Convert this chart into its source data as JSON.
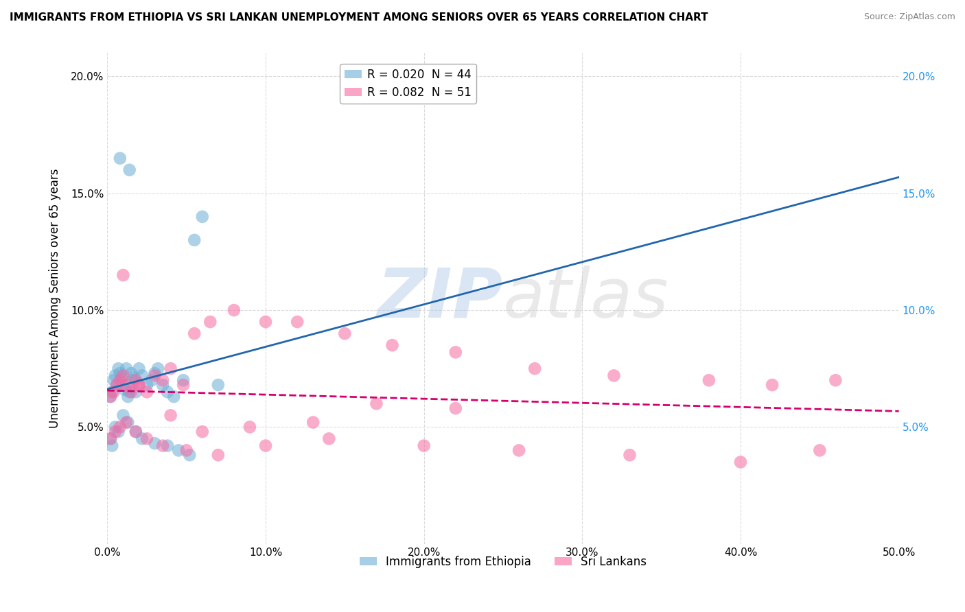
{
  "title": "IMMIGRANTS FROM ETHIOPIA VS SRI LANKAN UNEMPLOYMENT AMONG SENIORS OVER 65 YEARS CORRELATION CHART",
  "source": "Source: ZipAtlas.com",
  "ylabel": "Unemployment Among Seniors over 65 years",
  "xlim": [
    0.0,
    0.5
  ],
  "ylim": [
    0.0,
    0.21
  ],
  "xticks": [
    0.0,
    0.1,
    0.2,
    0.3,
    0.4,
    0.5
  ],
  "xticklabels": [
    "0.0%",
    "10.0%",
    "20.0%",
    "30.0%",
    "40.0%",
    "50.0%"
  ],
  "yticks": [
    0.0,
    0.05,
    0.1,
    0.15,
    0.2
  ],
  "yticklabels_left": [
    "",
    "5.0%",
    "10.0%",
    "15.0%",
    "20.0%"
  ],
  "yticklabels_right": [
    "",
    "5.0%",
    "10.0%",
    "15.0%",
    "20.0%"
  ],
  "legend1_label": "Immigrants from Ethiopia",
  "legend2_label": "Sri Lankans",
  "r1": 0.02,
  "n1": 44,
  "r2": 0.082,
  "n2": 51,
  "color1": "#6baed6",
  "color2": "#f768a1",
  "line_color1": "#2166ac",
  "line_color2": "#d4006e",
  "watermark_zip": "ZIP",
  "watermark_atlas": "atlas",
  "ethiopia_x": [
    0.002,
    0.003,
    0.004,
    0.005,
    0.006,
    0.007,
    0.008,
    0.009,
    0.01,
    0.011,
    0.012,
    0.013,
    0.014,
    0.015,
    0.016,
    0.017,
    0.018,
    0.02,
    0.022,
    0.025,
    0.028,
    0.03,
    0.032,
    0.035,
    0.038,
    0.042,
    0.048,
    0.055,
    0.06,
    0.07,
    0.002,
    0.003,
    0.005,
    0.007,
    0.01,
    0.013,
    0.018,
    0.022,
    0.03,
    0.038,
    0.045,
    0.052,
    0.008,
    0.014
  ],
  "ethiopia_y": [
    0.063,
    0.065,
    0.07,
    0.072,
    0.068,
    0.075,
    0.073,
    0.071,
    0.068,
    0.066,
    0.075,
    0.063,
    0.065,
    0.073,
    0.07,
    0.071,
    0.065,
    0.075,
    0.072,
    0.068,
    0.07,
    0.073,
    0.075,
    0.068,
    0.065,
    0.063,
    0.07,
    0.13,
    0.14,
    0.068,
    0.045,
    0.042,
    0.05,
    0.048,
    0.055,
    0.052,
    0.048,
    0.045,
    0.043,
    0.042,
    0.04,
    0.038,
    0.165,
    0.16
  ],
  "srilanka_x": [
    0.002,
    0.004,
    0.006,
    0.008,
    0.01,
    0.012,
    0.015,
    0.018,
    0.02,
    0.025,
    0.03,
    0.035,
    0.04,
    0.048,
    0.055,
    0.065,
    0.08,
    0.1,
    0.12,
    0.15,
    0.18,
    0.22,
    0.27,
    0.32,
    0.38,
    0.42,
    0.46,
    0.002,
    0.005,
    0.008,
    0.012,
    0.018,
    0.025,
    0.035,
    0.05,
    0.07,
    0.1,
    0.14,
    0.2,
    0.26,
    0.33,
    0.4,
    0.45,
    0.01,
    0.02,
    0.04,
    0.06,
    0.09,
    0.13,
    0.17,
    0.22
  ],
  "srilanka_y": [
    0.063,
    0.065,
    0.068,
    0.07,
    0.072,
    0.068,
    0.065,
    0.07,
    0.068,
    0.065,
    0.072,
    0.07,
    0.075,
    0.068,
    0.09,
    0.095,
    0.1,
    0.095,
    0.095,
    0.09,
    0.085,
    0.082,
    0.075,
    0.072,
    0.07,
    0.068,
    0.07,
    0.045,
    0.048,
    0.05,
    0.052,
    0.048,
    0.045,
    0.042,
    0.04,
    0.038,
    0.042,
    0.045,
    0.042,
    0.04,
    0.038,
    0.035,
    0.04,
    0.115,
    0.068,
    0.055,
    0.048,
    0.05,
    0.052,
    0.06,
    0.058
  ]
}
